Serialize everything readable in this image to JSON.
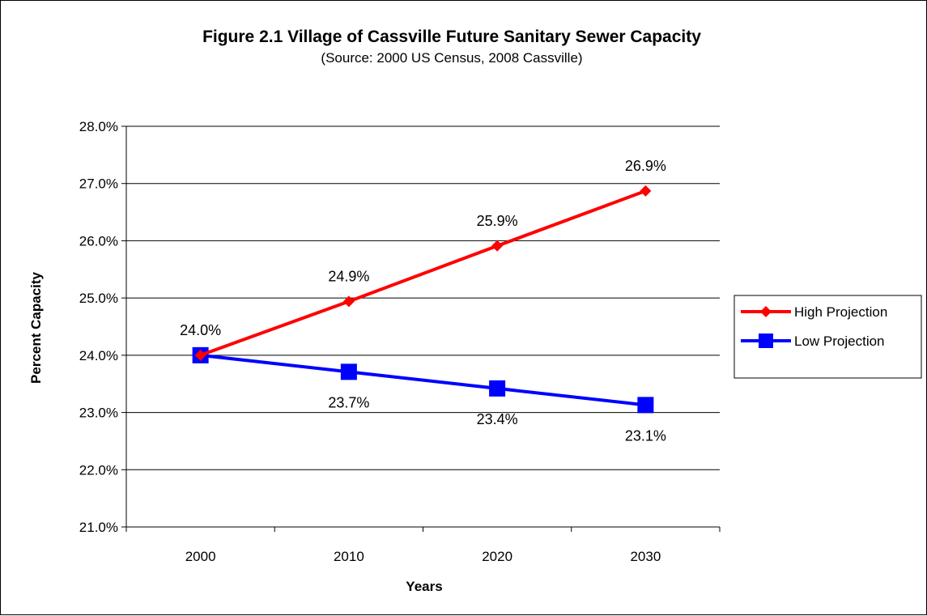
{
  "chart_data": {
    "type": "line",
    "title": "Figure 2.1 Village of Cassville Future Sanitary Sewer Capacity",
    "subtitle": "(Source:  2000 US Census, 2008 Cassville)",
    "xlabel": "Years",
    "ylabel": "Percent Capacity",
    "categories": [
      "2000",
      "2010",
      "2020",
      "2030"
    ],
    "ylim": [
      21.0,
      28.0
    ],
    "ytick_step": 1.0,
    "yticks": [
      "21.0%",
      "22.0%",
      "23.0%",
      "24.0%",
      "25.0%",
      "26.0%",
      "27.0%",
      "28.0%"
    ],
    "grid": true,
    "legend_position": "right",
    "series": [
      {
        "name": "High Projection",
        "color": "#ff0000",
        "marker": "diamond",
        "values": [
          24.0,
          24.94,
          25.91,
          26.87
        ],
        "labels": [
          "24.0%",
          "24.9%",
          "25.9%",
          "26.9%"
        ],
        "label_position": "above"
      },
      {
        "name": "Low Projection",
        "color": "#0000ff",
        "marker": "square",
        "values": [
          24.0,
          23.71,
          23.42,
          23.13
        ],
        "labels": [
          "",
          "23.7%",
          "23.4%",
          "23.1%"
        ],
        "label_position": "below"
      }
    ]
  }
}
